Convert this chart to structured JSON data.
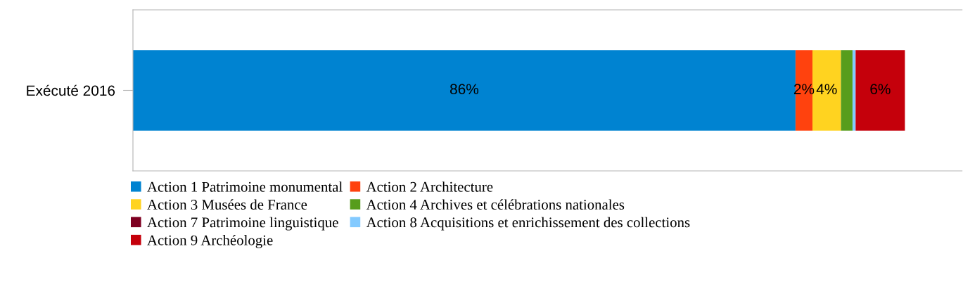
{
  "chart_data": {
    "type": "bar",
    "orientation": "horizontal",
    "stacked": true,
    "categories": [
      "Exécuté 2016"
    ],
    "series": [
      {
        "name": "Action 1 Patrimoine monumental",
        "color": "#0083d1",
        "values": [
          86
        ],
        "value_labels": [
          "86%"
        ]
      },
      {
        "name": "Action 2 Architecture",
        "color": "#ff420e",
        "values": [
          2.2
        ],
        "value_labels": [
          "2%"
        ]
      },
      {
        "name": "Action 3 Musées de France",
        "color": "#ffd320",
        "values": [
          3.7
        ],
        "value_labels": [
          "4%"
        ]
      },
      {
        "name": "Action 4 Archives et célébrations nationales",
        "color": "#579d1c",
        "values": [
          1.5
        ],
        "value_labels": [
          null
        ]
      },
      {
        "name": "Action 7 Patrimoine linguistique",
        "color": "#7e0021",
        "values": [
          0
        ],
        "value_labels": [
          null
        ]
      },
      {
        "name": "Action 8 Acquisitions et enrichissement des collections",
        "color": "#83caff",
        "values": [
          0.4
        ],
        "value_labels": [
          null
        ]
      },
      {
        "name": "Action 9 Archéologie",
        "color": "#c5000b",
        "values": [
          6.4
        ],
        "value_labels": [
          "6%"
        ]
      }
    ],
    "tick_labels": "y",
    "grid": false,
    "legend": "bottom"
  }
}
